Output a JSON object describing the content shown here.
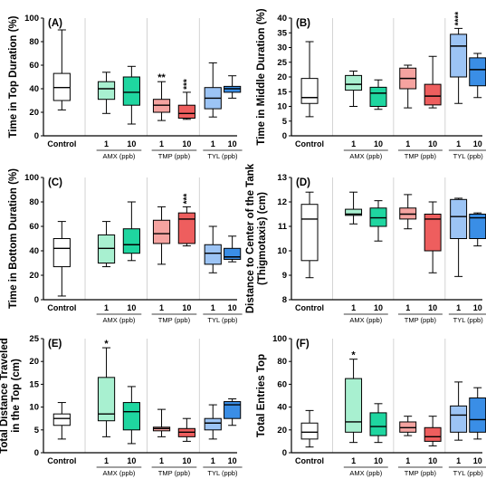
{
  "colors": {
    "control": "#ffffff",
    "amx": "#a8f0d0",
    "amx_dark": "#1fd6a0",
    "tmp": "#f5a3a0",
    "tmp_dark": "#ee5e5e",
    "tyl": "#9cc4f5",
    "tyl_dark": "#3a8ee6"
  },
  "chart_data": [
    {
      "type": "box",
      "panel": "(A)",
      "ylabel": "Time in Top Duration (%)",
      "ylim": [
        0,
        100
      ],
      "yticks": [
        "0",
        "20",
        "40",
        "60",
        "80",
        "100"
      ],
      "categories": [
        "Control",
        "1",
        "10",
        "1",
        "10",
        "1",
        "10"
      ],
      "groups": [
        {
          "label": "AMX (ppb)"
        },
        {
          "label": "TMP (ppb)"
        },
        {
          "label": "TYL (ppb)"
        }
      ],
      "boxes": [
        {
          "min": 22,
          "q1": 30,
          "median": 41,
          "q3": 53,
          "max": 90
        },
        {
          "min": 19,
          "q1": 31,
          "median": 40,
          "q3": 46,
          "max": 54
        },
        {
          "min": 10,
          "q1": 26,
          "median": 37,
          "q3": 50,
          "max": 59
        },
        {
          "min": 13,
          "q1": 20,
          "median": 26,
          "q3": 31,
          "max": 46
        },
        {
          "min": 14,
          "q1": 15,
          "median": 19,
          "q3": 26,
          "max": 37
        },
        {
          "min": 16,
          "q1": 23,
          "median": 32,
          "q3": 41,
          "max": 62
        },
        {
          "min": 32,
          "q1": 37,
          "median": 40,
          "q3": 42,
          "max": 51
        }
      ],
      "annotations": [
        "",
        "",
        "",
        "**",
        "***",
        "",
        ""
      ]
    },
    {
      "type": "box",
      "panel": "(B)",
      "ylabel": "Time in Middle Duration (%)",
      "ylim": [
        0,
        40
      ],
      "yticks": [
        "0",
        "5",
        "10",
        "15",
        "20",
        "25",
        "30",
        "35",
        "40"
      ],
      "categories": [
        "Control",
        "1",
        "10",
        "1",
        "10",
        "1",
        "10"
      ],
      "groups": [
        {
          "label": "AMX (ppb)"
        },
        {
          "label": "TMP (ppb)"
        },
        {
          "label": "TYL (ppb)"
        }
      ],
      "boxes": [
        {
          "min": 6.5,
          "q1": 11,
          "median": 13,
          "q3": 19.5,
          "max": 32
        },
        {
          "min": 10,
          "q1": 15.5,
          "median": 17.5,
          "q3": 20.5,
          "max": 22
        },
        {
          "min": 9,
          "q1": 10,
          "median": 14.5,
          "q3": 16.5,
          "max": 19
        },
        {
          "min": 9.5,
          "q1": 16,
          "median": 19.5,
          "q3": 23,
          "max": 24
        },
        {
          "min": 9.5,
          "q1": 10.5,
          "median": 13.5,
          "q3": 17.5,
          "max": 27
        },
        {
          "min": 11,
          "q1": 20,
          "median": 30.5,
          "q3": 34.5,
          "max": 36.5
        },
        {
          "min": 13,
          "q1": 17,
          "median": 22.5,
          "q3": 26.5,
          "max": 28
        }
      ],
      "annotations": [
        "",
        "",
        "",
        "",
        "",
        "****",
        ""
      ]
    },
    {
      "type": "box",
      "panel": "(C)",
      "ylabel": "Time in Bottom Duration (%)",
      "ylim": [
        0,
        100
      ],
      "yticks": [
        "0",
        "20",
        "40",
        "60",
        "80",
        "100"
      ],
      "categories": [
        "Control",
        "1",
        "10",
        "1",
        "10",
        "1",
        "10"
      ],
      "groups": [
        {
          "label": "AMX (ppb)"
        },
        {
          "label": "TMP (ppb)"
        },
        {
          "label": "TYL (ppb)"
        }
      ],
      "boxes": [
        {
          "min": 3,
          "q1": 27,
          "median": 42,
          "q3": 50,
          "max": 64
        },
        {
          "min": 27,
          "q1": 30,
          "median": 42,
          "q3": 53,
          "max": 64
        },
        {
          "min": 32,
          "q1": 38,
          "median": 45,
          "q3": 58,
          "max": 80
        },
        {
          "min": 29,
          "q1": 46,
          "median": 54,
          "q3": 65,
          "max": 76
        },
        {
          "min": 44,
          "q1": 46,
          "median": 66,
          "q3": 71,
          "max": 76
        },
        {
          "min": 22,
          "q1": 29,
          "median": 38,
          "q3": 45,
          "max": 60
        },
        {
          "min": 31,
          "q1": 33,
          "median": 35,
          "q3": 42,
          "max": 52
        }
      ],
      "annotations": [
        "",
        "",
        "",
        "",
        "***",
        "",
        ""
      ]
    },
    {
      "type": "box",
      "panel": "(D)",
      "ylabel": "Distance to Center of the Tank (Thigmotaxis) (cm)",
      "ylim": [
        8,
        13
      ],
      "yticks": [
        "8",
        "9",
        "10",
        "11",
        "12",
        "13"
      ],
      "categories": [
        "Control",
        "1",
        "10",
        "1",
        "10",
        "1",
        "10"
      ],
      "groups": [
        {
          "label": "AMX (ppb)"
        },
        {
          "label": "TMP (ppb)"
        },
        {
          "label": "TYL (ppb)"
        }
      ],
      "boxes": [
        {
          "min": 8.9,
          "q1": 9.6,
          "median": 11.3,
          "q3": 11.9,
          "max": 12.4
        },
        {
          "min": 11.1,
          "q1": 11.45,
          "median": 11.5,
          "q3": 11.7,
          "max": 12.4
        },
        {
          "min": 10.4,
          "q1": 11.0,
          "median": 11.35,
          "q3": 11.75,
          "max": 12.05
        },
        {
          "min": 10.9,
          "q1": 11.3,
          "median": 11.5,
          "q3": 11.75,
          "max": 12.3
        },
        {
          "min": 9.1,
          "q1": 10.0,
          "median": 11.3,
          "q3": 11.5,
          "max": 12.0
        },
        {
          "min": 8.95,
          "q1": 10.5,
          "median": 11.4,
          "q3": 12.1,
          "max": 12.15
        },
        {
          "min": 10.2,
          "q1": 10.5,
          "median": 11.35,
          "q3": 11.5,
          "max": 11.55
        }
      ],
      "annotations": [
        "",
        "",
        "",
        "",
        "",
        "",
        ""
      ]
    },
    {
      "type": "box",
      "panel": "(E)",
      "ylabel": "Total Distance Traveled in the Top (cm)",
      "ylim": [
        0,
        25
      ],
      "yticks": [
        "0",
        "5",
        "10",
        "15",
        "20",
        "25"
      ],
      "categories": [
        "Control",
        "1",
        "10",
        "1",
        "10",
        "1",
        "10"
      ],
      "groups": [
        {
          "label": "AMX (ppb)"
        },
        {
          "label": "TMP (ppb)"
        },
        {
          "label": "TYL (ppb)"
        }
      ],
      "boxes": [
        {
          "min": 3,
          "q1": 6,
          "median": 7.5,
          "q3": 8.5,
          "max": 11
        },
        {
          "min": 3.5,
          "q1": 7,
          "median": 8.5,
          "q3": 16.5,
          "max": 23
        },
        {
          "min": 2,
          "q1": 5,
          "median": 9,
          "q3": 11,
          "max": 14.5
        },
        {
          "min": 3.5,
          "q1": 4.8,
          "median": 5.3,
          "q3": 5.6,
          "max": 9.5
        },
        {
          "min": 2.5,
          "q1": 3.5,
          "median": 4.5,
          "q3": 5.3,
          "max": 7.5
        },
        {
          "min": 3,
          "q1": 5,
          "median": 6.5,
          "q3": 7.5,
          "max": 10.5
        },
        {
          "min": 6,
          "q1": 7.5,
          "median": 10.5,
          "q3": 11.2,
          "max": 11.8
        }
      ],
      "annotations": [
        "",
        "*",
        "",
        "",
        "",
        "",
        ""
      ]
    },
    {
      "type": "box",
      "panel": "(F)",
      "ylabel": "Total Entries Top",
      "ylim": [
        0,
        100
      ],
      "yticks": [
        "0",
        "20",
        "40",
        "60",
        "80",
        "100"
      ],
      "categories": [
        "Control",
        "1",
        "10",
        "1",
        "10",
        "1",
        "10"
      ],
      "groups": [
        {
          "label": "AMX (ppb)"
        },
        {
          "label": "TMP (ppb)"
        },
        {
          "label": "TYL (ppb)"
        }
      ],
      "boxes": [
        {
          "min": 5,
          "q1": 12,
          "median": 18,
          "q3": 26,
          "max": 37
        },
        {
          "min": 9,
          "q1": 18,
          "median": 27,
          "q3": 65,
          "max": 82
        },
        {
          "min": 9,
          "q1": 15,
          "median": 23,
          "q3": 35,
          "max": 43
        },
        {
          "min": 15,
          "q1": 18,
          "median": 22,
          "q3": 27,
          "max": 32
        },
        {
          "min": 6,
          "q1": 10,
          "median": 14,
          "q3": 22,
          "max": 32
        },
        {
          "min": 11,
          "q1": 18,
          "median": 33,
          "q3": 41,
          "max": 62
        },
        {
          "min": 12,
          "q1": 18,
          "median": 29,
          "q3": 48,
          "max": 57
        }
      ],
      "annotations": [
        "",
        "*",
        "",
        "",
        "",
        "",
        ""
      ]
    }
  ]
}
